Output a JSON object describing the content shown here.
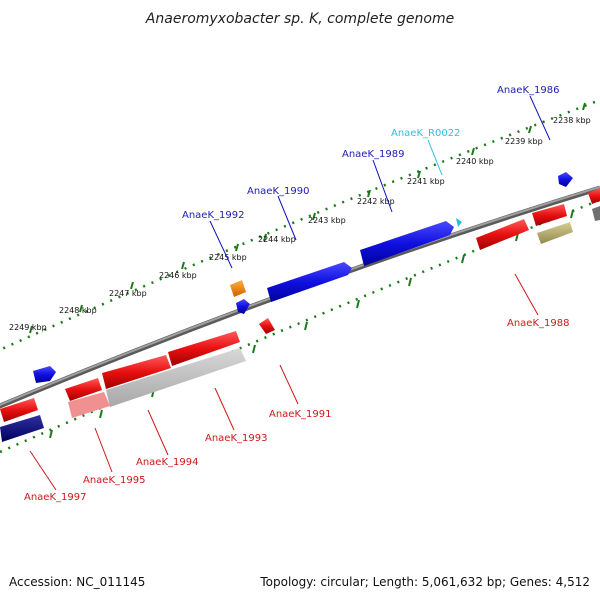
{
  "title": "Anaeromyxobacter sp. K, complete genome",
  "footer": {
    "accession": "Accession: NC_011145",
    "stats": "Topology: circular; Length: 5,061,632 bp; Genes: 4,512"
  },
  "colors": {
    "forward_cds": "#1010e0",
    "reverse_cds": "#e01010",
    "rna": "#20c0e0",
    "backbone": "#808080",
    "ticks": "#1a7a1a",
    "forward_label": "#2020b0",
    "reverse_label": "#d01818",
    "rna_label": "#30c0e0"
  },
  "kbp_ticks": [
    "2238 kbp",
    "2239 kbp",
    "2240 kbp",
    "2241 kbp",
    "2242 kbp",
    "2243 kbp",
    "2244 kbp",
    "2245 kbp",
    "2246 kbp",
    "2247 kbp",
    "2248 kbp",
    "2249 kbp"
  ],
  "forward_genes": [
    {
      "label": "AnaeK_1986"
    },
    {
      "label": "AnaeK_R0022"
    },
    {
      "label": "AnaeK_1989"
    },
    {
      "label": "AnaeK_1990"
    },
    {
      "label": "AnaeK_1992"
    }
  ],
  "reverse_genes": [
    {
      "label": "AnaeK_1988"
    },
    {
      "label": "AnaeK_1991"
    },
    {
      "label": "AnaeK_1993"
    },
    {
      "label": "AnaeK_1994"
    },
    {
      "label": "AnaeK_1995"
    },
    {
      "label": "AnaeK_1997"
    }
  ]
}
